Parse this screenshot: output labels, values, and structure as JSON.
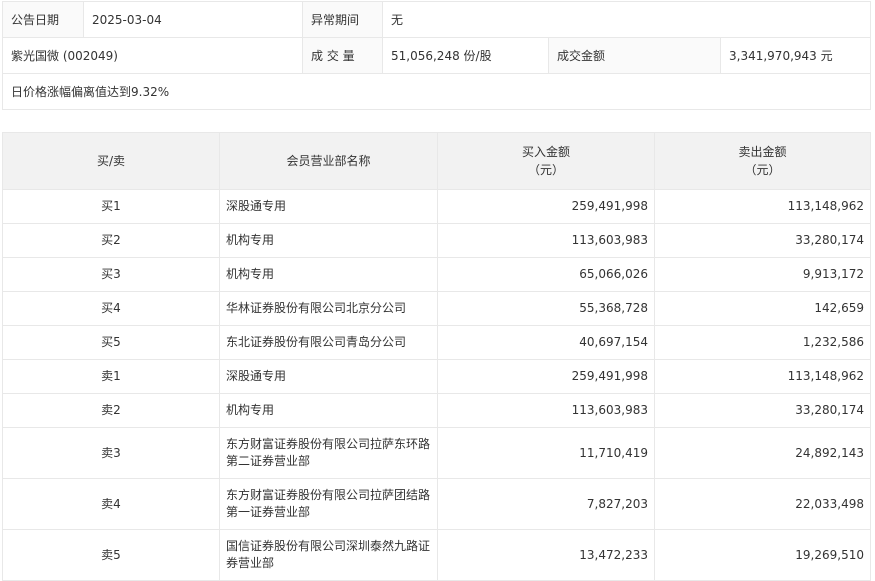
{
  "info": {
    "date_label": "公告日期",
    "date": "2025-03-04",
    "period_label": "异常期间",
    "period": "无",
    "stock": "紫光国微 (002049)",
    "volume_label": "成 交 量",
    "volume": "51,056,248 份/股",
    "amount_label": "成交金额",
    "amount": "3,341,970,943 元",
    "reason": "日价格涨幅偏离值达到9.32%"
  },
  "table": {
    "headers": [
      "买/卖",
      "会员营业部名称",
      "买入金额",
      "（元）",
      "卖出金额",
      "（元）"
    ],
    "rows": [
      {
        "side": "买1",
        "name": "深股通专用",
        "buy": "259,491,998",
        "sell": "113,148,962"
      },
      {
        "side": "买2",
        "name": "机构专用",
        "buy": "113,603,983",
        "sell": "33,280,174"
      },
      {
        "side": "买3",
        "name": "机构专用",
        "buy": "65,066,026",
        "sell": "9,913,172"
      },
      {
        "side": "买4",
        "name": "华林证券股份有限公司北京分公司",
        "buy": "55,368,728",
        "sell": "142,659"
      },
      {
        "side": "买5",
        "name": "东北证券股份有限公司青岛分公司",
        "buy": "40,697,154",
        "sell": "1,232,586"
      },
      {
        "side": "卖1",
        "name": "深股通专用",
        "buy": "259,491,998",
        "sell": "113,148,962"
      },
      {
        "side": "卖2",
        "name": "机构专用",
        "buy": "113,603,983",
        "sell": "33,280,174"
      },
      {
        "side": "卖3",
        "name": "东方财富证券股份有限公司拉萨东环路第二证券营业部",
        "buy": "11,710,419",
        "sell": "24,892,143"
      },
      {
        "side": "卖4",
        "name": "东方财富证券股份有限公司拉萨团结路第一证券营业部",
        "buy": "7,827,203",
        "sell": "22,033,498"
      },
      {
        "side": "卖5",
        "name": "国信证券股份有限公司深圳泰然九路证券营业部",
        "buy": "13,472,233",
        "sell": "19,269,510"
      }
    ]
  }
}
